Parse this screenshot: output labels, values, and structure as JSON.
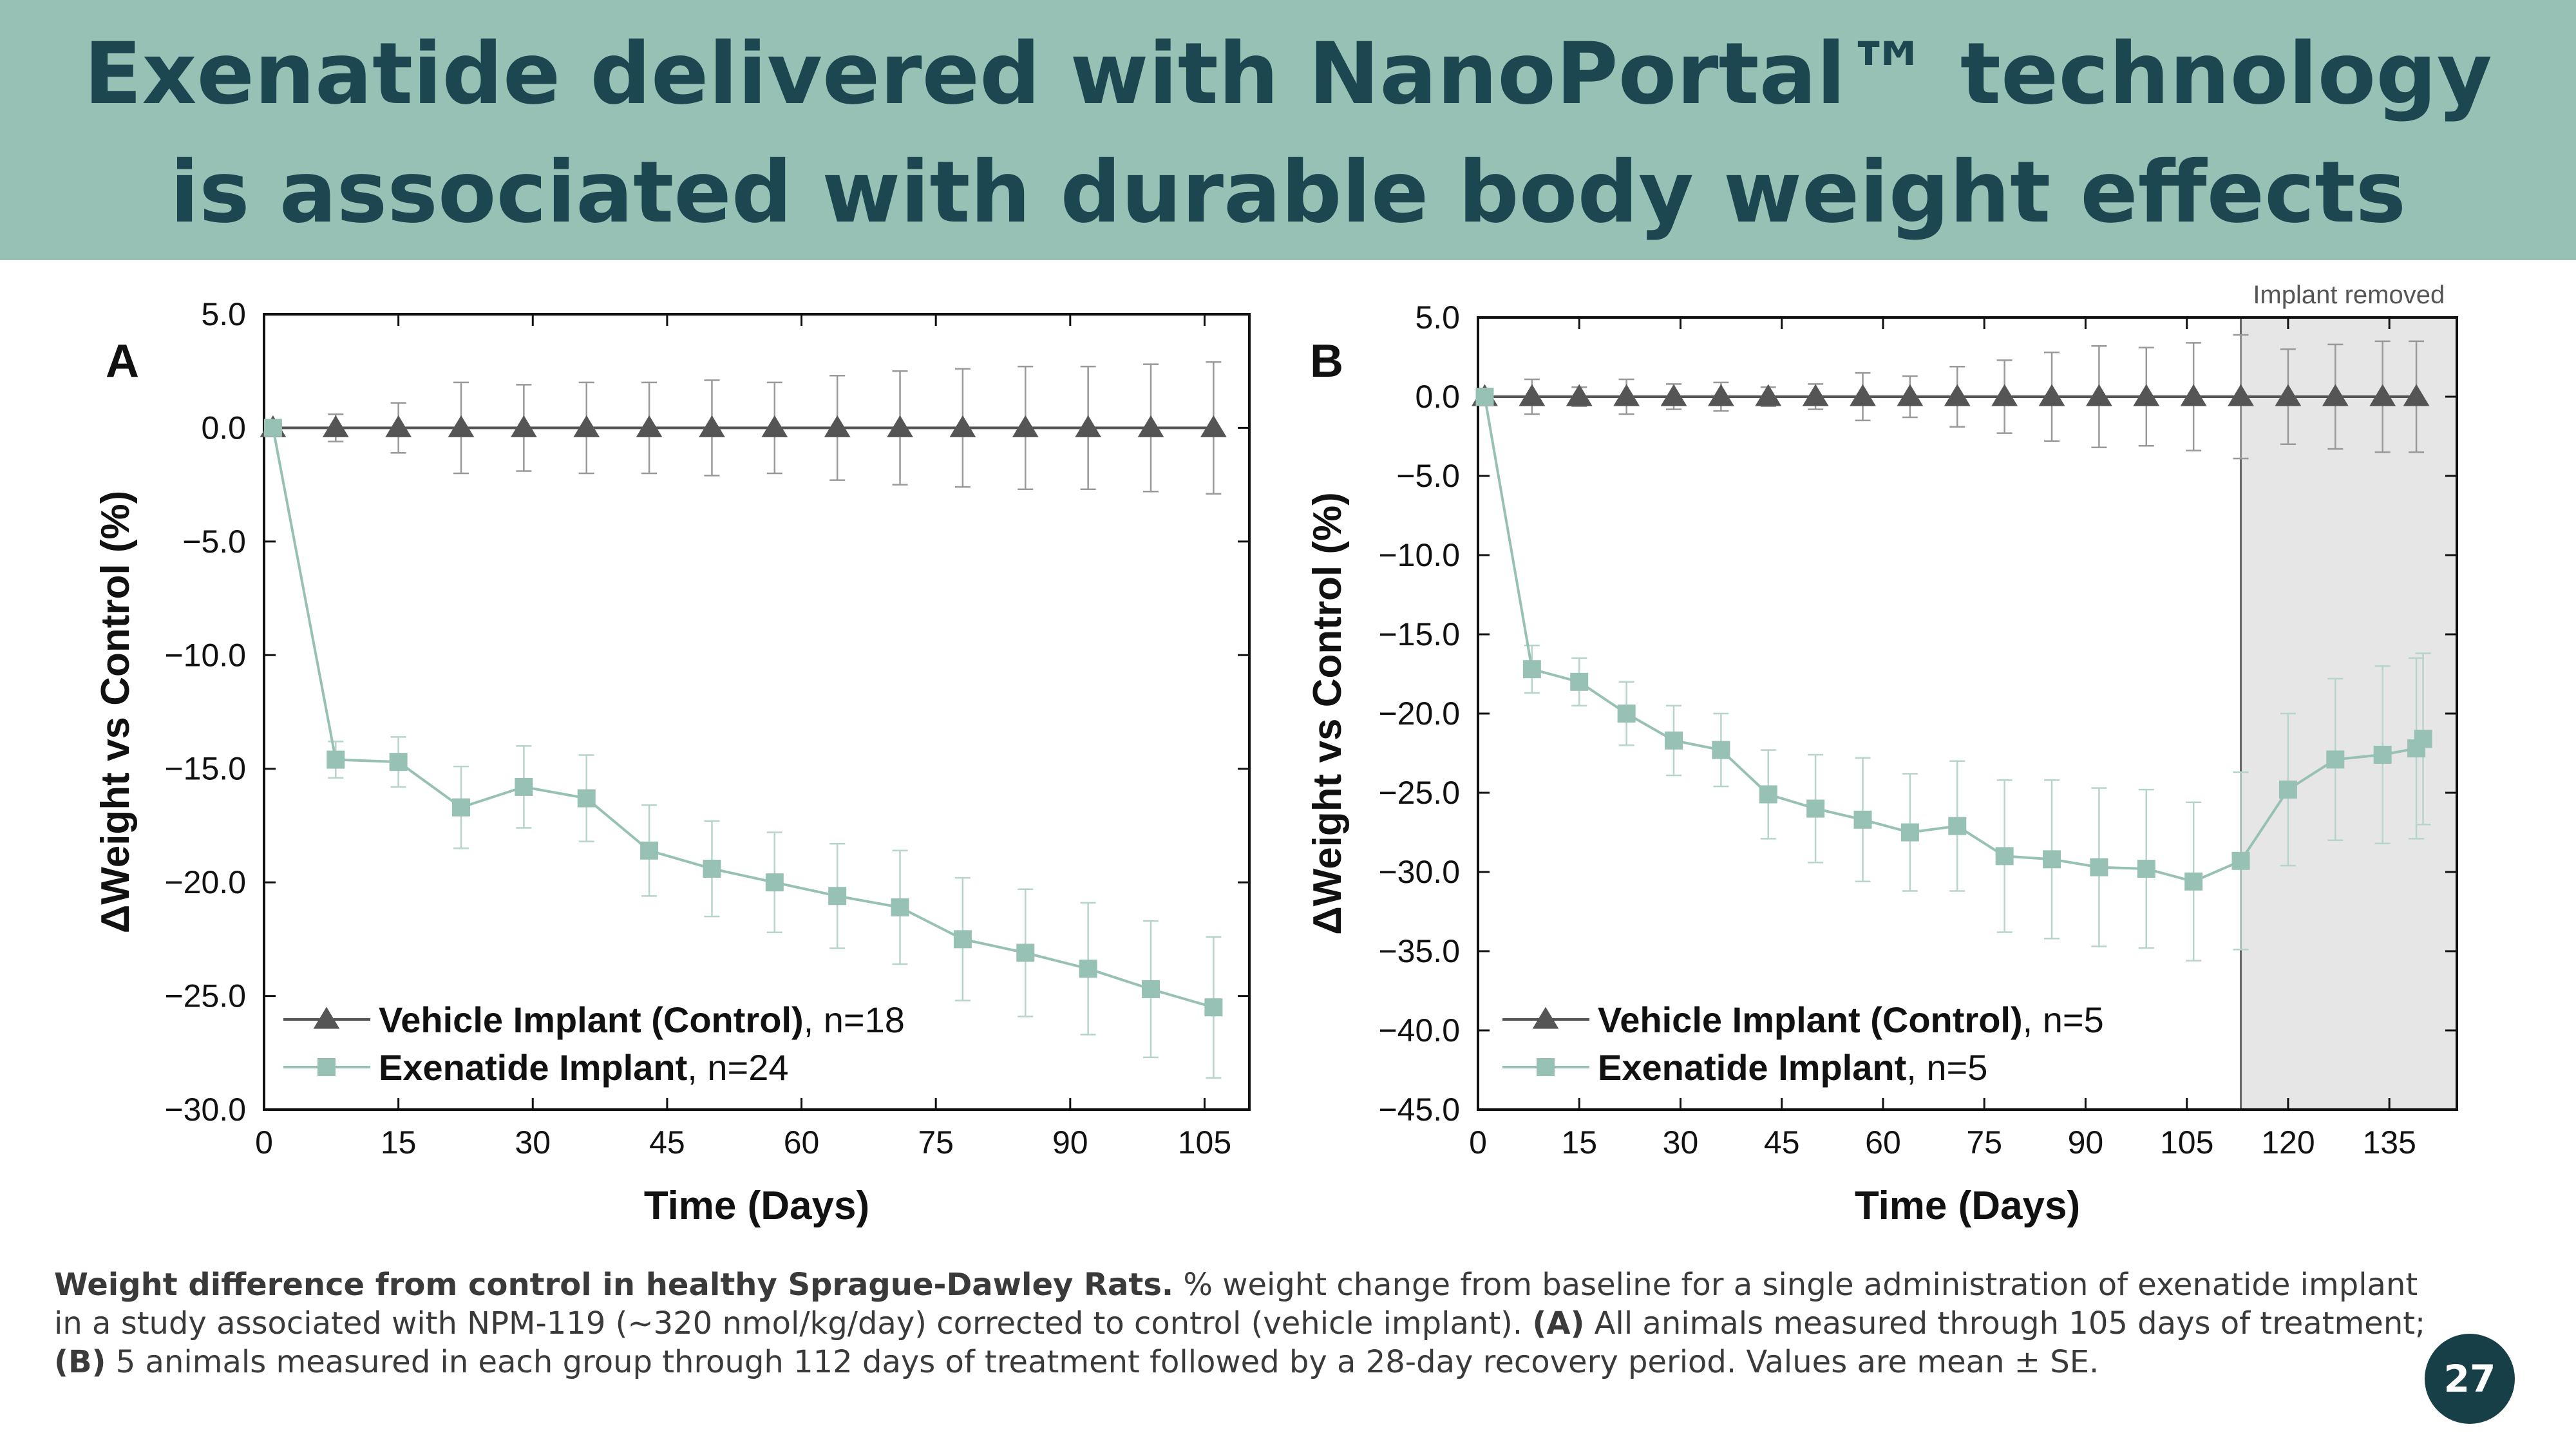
{
  "slide": {
    "title_line1": "Exenatide delivered with NanoPortal™ technology",
    "title_line2": "is associated with durable body weight effects",
    "page_number": "27",
    "colors": {
      "header_bg": "#98c1b5",
      "title_text": "#1c4650",
      "badge_bg": "#173f47",
      "control_series": "#555555",
      "exenatide_series": "#98c1b5",
      "shaded_region": "#e6e6e6"
    }
  },
  "caption": {
    "bold_lead": "Weight difference from control in healthy Sprague-Dawley Rats.",
    "text1": " % weight change from baseline for a single administration of exenatide implant in a study associated with NPM-119 (~320 nmol/kg/day) corrected to control (vehicle implant). ",
    "bold_a": "(A)",
    "text2": " All animals measured through 105 days of treatment; ",
    "bold_b": "(B)",
    "text3": " 5 animals measured in each group through 112 days of treatment followed by a 28-day recovery period. Values are mean ± SE."
  },
  "chart_data": [
    {
      "type": "line",
      "panel_label": "A",
      "xlabel": "Time (Days)",
      "ylabel": "ΔWeight vs Control (%)",
      "xlim": [
        0,
        110
      ],
      "ylim": [
        -30,
        5
      ],
      "xticks": [
        0,
        15,
        30,
        45,
        60,
        75,
        90,
        105
      ],
      "yticks": [
        5,
        0,
        -5,
        -10,
        -15,
        -20,
        -25,
        -30
      ],
      "ytick_labels": [
        "5.0",
        "0.0",
        "−5.0",
        "−10.0",
        "−15.0",
        "−20.0",
        "−25.0",
        "−30.0"
      ],
      "legend_position": "bottom-left",
      "series": [
        {
          "name": "Vehicle Implant (Control)",
          "legend_suffix": ", n=18",
          "marker": "triangle",
          "color": "#555555",
          "x": [
            1,
            8,
            15,
            22,
            29,
            36,
            43,
            50,
            57,
            64,
            71,
            78,
            85,
            92,
            99,
            106
          ],
          "values": [
            0,
            0,
            0,
            0,
            0,
            0,
            0,
            0,
            0,
            0,
            0,
            0,
            0,
            0,
            0,
            0
          ],
          "error": [
            0.3,
            0.6,
            1.1,
            2.0,
            1.9,
            2.0,
            2.0,
            2.1,
            2.0,
            2.3,
            2.5,
            2.6,
            2.7,
            2.7,
            2.8,
            2.9
          ]
        },
        {
          "name": "Exenatide Implant",
          "legend_suffix": ", n=24",
          "marker": "square",
          "color": "#98c1b5",
          "x": [
            1,
            8,
            15,
            22,
            29,
            36,
            43,
            50,
            57,
            64,
            71,
            78,
            85,
            92,
            99,
            106
          ],
          "values": [
            0,
            -14.6,
            -14.7,
            -16.7,
            -15.8,
            -16.3,
            -18.6,
            -19.4,
            -20.0,
            -20.6,
            -21.1,
            -22.5,
            -23.1,
            -23.8,
            -24.7,
            -25.5
          ],
          "error": [
            0.3,
            0.8,
            1.1,
            1.8,
            1.8,
            1.9,
            2.0,
            2.1,
            2.2,
            2.3,
            2.5,
            2.7,
            2.8,
            2.9,
            3.0,
            3.1
          ]
        }
      ]
    },
    {
      "type": "line",
      "panel_label": "B",
      "xlabel": "Time (Days)",
      "ylabel": "ΔWeight vs Control (%)",
      "xlim": [
        0,
        145
      ],
      "ylim": [
        -45,
        5
      ],
      "xticks": [
        0,
        15,
        30,
        45,
        60,
        75,
        90,
        105,
        120,
        135
      ],
      "yticks": [
        5,
        0,
        -5,
        -10,
        -15,
        -20,
        -25,
        -30,
        -35,
        -40,
        -45
      ],
      "ytick_labels": [
        "5.0",
        "0.0",
        "−5.0",
        "−10.0",
        "−15.0",
        "−20.0",
        "−25.0",
        "−30.0",
        "−35.0",
        "−40.0",
        "−45.0"
      ],
      "shaded_region": {
        "from": 113,
        "to": 145,
        "label": "Implant removed"
      },
      "legend_position": "bottom-left",
      "series": [
        {
          "name": "Vehicle Implant (Control)",
          "legend_suffix": ", n=5",
          "marker": "triangle",
          "color": "#555555",
          "x": [
            1,
            8,
            15,
            22,
            29,
            36,
            43,
            50,
            57,
            64,
            71,
            78,
            85,
            92,
            99,
            106,
            113,
            120,
            127,
            134,
            139
          ],
          "values": [
            0,
            0,
            0,
            0,
            0,
            0,
            0,
            0,
            0,
            0,
            0,
            0,
            0,
            0,
            0,
            0,
            0,
            0,
            0,
            0,
            0
          ],
          "error": [
            0.3,
            1.1,
            0.6,
            1.1,
            0.8,
            0.9,
            0.6,
            0.8,
            1.5,
            1.3,
            1.9,
            2.3,
            2.8,
            3.2,
            3.1,
            3.4,
            3.9,
            3.0,
            3.3,
            3.5,
            3.5
          ]
        },
        {
          "name": "Exenatide Implant",
          "legend_suffix": ", n=5",
          "marker": "square",
          "color": "#98c1b5",
          "x": [
            1,
            8,
            15,
            22,
            29,
            36,
            43,
            50,
            57,
            64,
            71,
            78,
            85,
            92,
            99,
            106,
            113,
            120,
            127,
            134,
            139,
            140
          ],
          "values": [
            0,
            -17.2,
            -18.0,
            -20.0,
            -21.7,
            -22.3,
            -25.1,
            -26.0,
            -26.7,
            -27.5,
            -27.1,
            -29.0,
            -29.2,
            -29.7,
            -29.8,
            -30.6,
            -29.3,
            -24.8,
            -22.9,
            -22.6,
            -22.2,
            -21.6
          ],
          "error": [
            0.3,
            1.5,
            1.5,
            2.0,
            2.2,
            2.3,
            2.8,
            3.4,
            3.9,
            3.7,
            4.1,
            4.8,
            5.0,
            5.0,
            5.0,
            5.0,
            5.6,
            4.8,
            5.1,
            5.6,
            5.7,
            5.4
          ]
        }
      ]
    }
  ]
}
